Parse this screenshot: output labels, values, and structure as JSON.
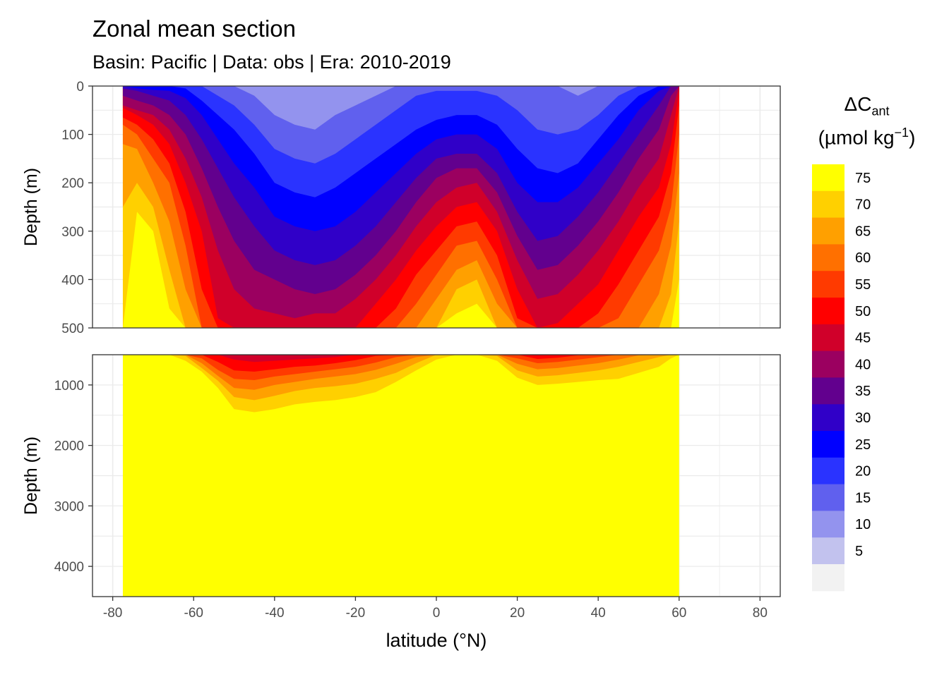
{
  "title": "Zonal mean section",
  "subtitle": "Basin: Pacific | Data: obs | Era: 2010-2019",
  "chart_data": {
    "type": "heatmap",
    "subtype": "filled-contour section, two depth panels",
    "xlabel": "latitude (°N)",
    "ylabel": "Depth (m)",
    "x_ticks": [
      "-80",
      "-60",
      "-40",
      "-20",
      "0",
      "20",
      "40",
      "60",
      "80"
    ],
    "xlim": [
      -85,
      85
    ],
    "panels": [
      {
        "name": "upper",
        "ylim": [
          0,
          500
        ],
        "y_ticks": [
          "0",
          "100",
          "200",
          "300",
          "400",
          "500"
        ],
        "y_reversed": true
      },
      {
        "name": "lower",
        "ylim": [
          500,
          4500
        ],
        "y_ticks": [
          "1000",
          "2000",
          "3000",
          "4000"
        ],
        "y_reversed": true
      }
    ],
    "ocean_lat_range": [
      -77.5,
      60
    ],
    "legend": {
      "title_main": "ΔC",
      "title_sub": "ant",
      "unit_open": "(µmol kg",
      "unit_sup": "−1",
      "unit_close": ")",
      "labels": [
        "75",
        "70",
        "65",
        "60",
        "55",
        "50",
        "45",
        "40",
        "35",
        "30",
        "25",
        "20",
        "15",
        "10",
        "5"
      ],
      "colors": [
        "#ffff00",
        "#ffd000",
        "#ffa000",
        "#ff7000",
        "#ff3a00",
        "#ff0000",
        "#d0002a",
        "#9b0060",
        "#62008e",
        "#3000c8",
        "#0000ff",
        "#2a33ff",
        "#6060ee",
        "#9393ee",
        "#c2c2ee",
        "#f2f2f2"
      ]
    },
    "profiles": [
      {
        "lat": -77.5,
        "iso": [
          0,
          0,
          0,
          0,
          0,
          5,
          20,
          40,
          45,
          65,
          80,
          120,
          250,
          500,
          3000
        ]
      },
      {
        "lat": -74,
        "iso": [
          0,
          0,
          0,
          0,
          5,
          10,
          30,
          50,
          60,
          80,
          100,
          130,
          200,
          260,
          3500
        ]
      },
      {
        "lat": -70,
        "iso": [
          0,
          0,
          0,
          0,
          8,
          20,
          40,
          60,
          80,
          110,
          150,
          200,
          250,
          300,
          3800
        ]
      },
      {
        "lat": -66,
        "iso": [
          0,
          0,
          0,
          0,
          10,
          30,
          60,
          90,
          120,
          160,
          200,
          280,
          380,
          460,
          4500
        ]
      },
      {
        "lat": -62,
        "iso": [
          0,
          0,
          0,
          5,
          25,
          60,
          100,
          150,
          200,
          260,
          330,
          420,
          520,
          600,
          4500
        ]
      },
      {
        "lat": -58,
        "iso": [
          0,
          0,
          0,
          30,
          60,
          110,
          170,
          230,
          300,
          420,
          560,
          640,
          720,
          780,
          4500
        ]
      },
      {
        "lat": -54,
        "iso": [
          0,
          0,
          20,
          60,
          110,
          170,
          250,
          340,
          480,
          620,
          750,
          850,
          930,
          1050,
          4500
        ]
      },
      {
        "lat": -50,
        "iso": [
          0,
          0,
          40,
          90,
          160,
          230,
          320,
          420,
          580,
          760,
          900,
          1050,
          1200,
          1400,
          4500
        ]
      },
      {
        "lat": -45,
        "iso": [
          0,
          20,
          80,
          140,
          210,
          290,
          380,
          460,
          620,
          780,
          920,
          1080,
          1250,
          1450,
          4500
        ]
      },
      {
        "lat": -40,
        "iso": [
          0,
          60,
          130,
          200,
          270,
          340,
          400,
          470,
          600,
          740,
          860,
          1000,
          1180,
          1400,
          4500
        ]
      },
      {
        "lat": -35,
        "iso": [
          0,
          80,
          150,
          220,
          290,
          360,
          420,
          480,
          580,
          700,
          820,
          950,
          1100,
          1320,
          4500
        ]
      },
      {
        "lat": -30,
        "iso": [
          0,
          90,
          160,
          230,
          300,
          370,
          430,
          470,
          560,
          680,
          780,
          900,
          1050,
          1280,
          4500
        ]
      },
      {
        "lat": -25,
        "iso": [
          0,
          60,
          140,
          210,
          290,
          360,
          420,
          470,
          540,
          640,
          740,
          860,
          1020,
          1250,
          4500
        ]
      },
      {
        "lat": -20,
        "iso": [
          0,
          40,
          110,
          180,
          260,
          330,
          390,
          440,
          500,
          590,
          700,
          820,
          980,
          1200,
          4500
        ]
      },
      {
        "lat": -15,
        "iso": [
          0,
          20,
          80,
          150,
          220,
          290,
          350,
          400,
          450,
          520,
          630,
          750,
          900,
          1120,
          4500
        ]
      },
      {
        "lat": -10,
        "iso": [
          0,
          0,
          50,
          120,
          180,
          240,
          300,
          350,
          400,
          460,
          540,
          650,
          800,
          950,
          4500
        ]
      },
      {
        "lat": -5,
        "iso": [
          0,
          0,
          20,
          90,
          140,
          190,
          240,
          290,
          340,
          390,
          450,
          540,
          640,
          760,
          4500
        ]
      },
      {
        "lat": 0,
        "iso": [
          0,
          0,
          10,
          70,
          110,
          150,
          190,
          240,
          290,
          340,
          390,
          440,
          500,
          580,
          4500
        ]
      },
      {
        "lat": 5,
        "iso": [
          0,
          0,
          10,
          60,
          100,
          140,
          170,
          210,
          250,
          290,
          330,
          380,
          420,
          470,
          4500
        ]
      },
      {
        "lat": 10,
        "iso": [
          0,
          0,
          10,
          60,
          100,
          140,
          170,
          200,
          240,
          280,
          320,
          360,
          400,
          450,
          4500
        ]
      },
      {
        "lat": 15,
        "iso": [
          0,
          0,
          20,
          80,
          130,
          180,
          220,
          260,
          300,
          350,
          400,
          450,
          520,
          600,
          4500
        ]
      },
      {
        "lat": 20,
        "iso": [
          0,
          0,
          50,
          130,
          200,
          260,
          310,
          360,
          420,
          480,
          560,
          650,
          760,
          880,
          4500
        ]
      },
      {
        "lat": 25,
        "iso": [
          0,
          0,
          90,
          170,
          240,
          320,
          380,
          440,
          510,
          570,
          640,
          740,
          860,
          1000,
          4500
        ]
      },
      {
        "lat": 30,
        "iso": [
          0,
          0,
          100,
          180,
          240,
          310,
          370,
          430,
          490,
          550,
          620,
          720,
          840,
          980,
          4500
        ]
      },
      {
        "lat": 35,
        "iso": [
          0,
          20,
          90,
          160,
          210,
          270,
          330,
          390,
          450,
          510,
          580,
          680,
          800,
          950,
          4500
        ]
      },
      {
        "lat": 40,
        "iso": [
          0,
          0,
          60,
          110,
          160,
          220,
          280,
          340,
          410,
          470,
          540,
          640,
          760,
          920,
          4500
        ]
      },
      {
        "lat": 45,
        "iso": [
          0,
          0,
          20,
          60,
          110,
          160,
          220,
          280,
          340,
          410,
          480,
          580,
          700,
          900,
          4500
        ]
      },
      {
        "lat": 50,
        "iso": [
          0,
          0,
          0,
          20,
          50,
          100,
          150,
          210,
          270,
          340,
          410,
          510,
          620,
          800,
          4500
        ]
      },
      {
        "lat": 55,
        "iso": [
          0,
          0,
          0,
          0,
          10,
          40,
          90,
          150,
          210,
          270,
          340,
          430,
          540,
          700,
          4500
        ]
      },
      {
        "lat": 58,
        "iso": [
          0,
          0,
          0,
          0,
          0,
          0,
          20,
          60,
          120,
          180,
          250,
          330,
          430,
          560,
          4500
        ]
      },
      {
        "lat": 60,
        "iso": [
          0,
          0,
          0,
          0,
          0,
          0,
          0,
          0,
          10,
          40,
          100,
          180,
          280,
          400,
          4500
        ]
      }
    ]
  }
}
